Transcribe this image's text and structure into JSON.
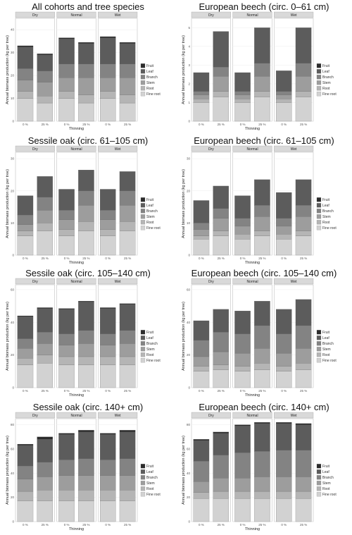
{
  "colors": {
    "Fruit": "#2b2b2b",
    "Leaf": "#5c5c5c",
    "Branch": "#838383",
    "Stem": "#9d9d9d",
    "Root": "#b5b5b5",
    "Fine root": "#d2d2d2",
    "strip": "#d9d9d9",
    "panel_bg": "#ffffff",
    "grid": "#ececec"
  },
  "chart_data": [
    {
      "type": "bar",
      "stacked": true,
      "title": "All cohorts and tree species",
      "xlabel": "Thinning",
      "ylabel": "Annual biomass production (kg per tree)",
      "facets": [
        "Dry",
        "Normal",
        "Wet"
      ],
      "categories": [
        "0 %",
        "25 %"
      ],
      "ylim": [
        0,
        45
      ],
      "yticks": [
        0,
        10,
        20,
        30,
        40
      ],
      "legend": [
        "Fruit",
        "Leaf",
        "Branch",
        "Stem",
        "Root",
        "Fine root"
      ],
      "series": [
        {
          "name": "Fine root",
          "values": [
            [
              10,
              8
            ],
            [
              10,
              8
            ],
            [
              10,
              8
            ]
          ]
        },
        {
          "name": "Root",
          "values": [
            [
              3,
              3
            ],
            [
              3,
              3.5
            ],
            [
              3,
              3.5
            ]
          ]
        },
        {
          "name": "Stem",
          "values": [
            [
              5,
              6
            ],
            [
              6,
              7.5
            ],
            [
              6,
              7.5
            ]
          ]
        },
        {
          "name": "Branch",
          "values": [
            [
              5,
              5
            ],
            [
              6,
              6
            ],
            [
              6,
              6
            ]
          ]
        },
        {
          "name": "Leaf",
          "values": [
            [
              9.5,
              7
            ],
            [
              11,
              9
            ],
            [
              11.5,
              9
            ]
          ]
        },
        {
          "name": "Fruit",
          "values": [
            [
              0.5,
              0.5
            ],
            [
              0.5,
              0.5
            ],
            [
              0.5,
              0.5
            ]
          ]
        }
      ]
    },
    {
      "type": "bar",
      "stacked": true,
      "title": "European beech (circ. 0–61 cm)",
      "xlabel": "Thinning",
      "ylabel": "Annual biomass production (kg per tree)",
      "facets": [
        "Dry",
        "Normal",
        "Wet"
      ],
      "categories": [
        "0 %",
        "25 %"
      ],
      "ylim": [
        0,
        5.5
      ],
      "yticks": [
        0,
        1,
        2,
        3,
        4,
        5
      ],
      "legend": [
        "Fruit",
        "Leaf",
        "Branch",
        "Stem",
        "Root",
        "Fine root"
      ],
      "series": [
        {
          "name": "Fine root",
          "values": [
            [
              1.0,
              1.3
            ],
            [
              1.0,
              1.3
            ],
            [
              1.0,
              1.3
            ]
          ]
        },
        {
          "name": "Root",
          "values": [
            [
              0.2,
              0.3
            ],
            [
              0.2,
              0.3
            ],
            [
              0.2,
              0.3
            ]
          ]
        },
        {
          "name": "Stem",
          "values": [
            [
              0.2,
              0.8
            ],
            [
              0.2,
              0.8
            ],
            [
              0.2,
              0.8
            ]
          ]
        },
        {
          "name": "Branch",
          "values": [
            [
              0.2,
              0.5
            ],
            [
              0.2,
              0.7
            ],
            [
              0.2,
              0.7
            ]
          ]
        },
        {
          "name": "Leaf",
          "values": [
            [
              1.0,
              1.9
            ],
            [
              1.0,
              1.9
            ],
            [
              1.1,
              1.9
            ]
          ]
        },
        {
          "name": "Fruit",
          "values": [
            [
              0,
              0
            ],
            [
              0,
              0
            ],
            [
              0,
              0
            ]
          ]
        }
      ]
    },
    {
      "type": "bar",
      "stacked": true,
      "title": "Sessile oak (circ. 61–105 cm)",
      "xlabel": "Thinning",
      "ylabel": "Annual biomass production (kg per tree)",
      "facets": [
        "Dry",
        "Normal",
        "Wet"
      ],
      "categories": [
        "0 %",
        "25 %"
      ],
      "ylim": [
        0,
        32
      ],
      "yticks": [
        0,
        10,
        20,
        30
      ],
      "legend": [
        "Fruit",
        "Leaf",
        "Branch",
        "Stem",
        "Root",
        "Fine root"
      ],
      "series": [
        {
          "name": "Fine root",
          "values": [
            [
              6,
              7.5
            ],
            [
              6,
              7.5
            ],
            [
              6,
              7.5
            ]
          ]
        },
        {
          "name": "Root",
          "values": [
            [
              1.5,
              2.5
            ],
            [
              2,
              3
            ],
            [
              2,
              3
            ]
          ]
        },
        {
          "name": "Stem",
          "values": [
            [
              2,
              4
            ],
            [
              3,
              5
            ],
            [
              3,
              5
            ]
          ]
        },
        {
          "name": "Branch",
          "values": [
            [
              3,
              4
            ],
            [
              3,
              4.5
            ],
            [
              3,
              4.5
            ]
          ]
        },
        {
          "name": "Leaf",
          "values": [
            [
              6,
              6.5
            ],
            [
              6.5,
              6.5
            ],
            [
              6.5,
              6
            ]
          ]
        },
        {
          "name": "Fruit",
          "values": [
            [
              0,
              0
            ],
            [
              0,
              0
            ],
            [
              0,
              0
            ]
          ]
        }
      ]
    },
    {
      "type": "bar",
      "stacked": true,
      "title": "European beech (circ. 61–105 cm)",
      "xlabel": "Thinning",
      "ylabel": "Annual biomass production (kg per tree)",
      "facets": [
        "Dry",
        "Normal",
        "Wet"
      ],
      "categories": [
        "0 %",
        "25 %"
      ],
      "ylim": [
        0,
        32
      ],
      "yticks": [
        0,
        10,
        20,
        30
      ],
      "legend": [
        "Fruit",
        "Leaf",
        "Branch",
        "Stem",
        "Root",
        "Fine root"
      ],
      "series": [
        {
          "name": "Fine root",
          "values": [
            [
              5,
              6
            ],
            [
              5,
              6
            ],
            [
              5,
              6
            ]
          ]
        },
        {
          "name": "Root",
          "values": [
            [
              1,
              1.5
            ],
            [
              1.5,
              1.5
            ],
            [
              1.5,
              1.5
            ]
          ]
        },
        {
          "name": "Stem",
          "values": [
            [
              2,
              4
            ],
            [
              2.5,
              4.5
            ],
            [
              2.5,
              4.5
            ]
          ]
        },
        {
          "name": "Branch",
          "values": [
            [
              2,
              3
            ],
            [
              2.5,
              3.5
            ],
            [
              2.5,
              3.5
            ]
          ]
        },
        {
          "name": "Leaf",
          "values": [
            [
              7,
              7
            ],
            [
              7,
              8
            ],
            [
              8,
              8
            ]
          ]
        },
        {
          "name": "Fruit",
          "values": [
            [
              0,
              0
            ],
            [
              0,
              0
            ],
            [
              0,
              0
            ]
          ]
        }
      ]
    },
    {
      "type": "bar",
      "stacked": true,
      "title": "Sessile oak (circ. 105–140 cm)",
      "xlabel": "Thinning",
      "ylabel": "Annual biomass production (kg per tree)",
      "facets": [
        "Dry",
        "Normal",
        "Wet"
      ],
      "categories": [
        "0 %",
        "25 %"
      ],
      "ylim": [
        0,
        63
      ],
      "yticks": [
        0,
        20,
        40,
        60
      ],
      "legend": [
        "Fruit",
        "Leaf",
        "Branch",
        "Stem",
        "Root",
        "Fine root"
      ],
      "series": [
        {
          "name": "Fine root",
          "values": [
            [
              14,
              15
            ],
            [
              14,
              14
            ],
            [
              14,
              14
            ]
          ]
        },
        {
          "name": "Root",
          "values": [
            [
              4,
              5
            ],
            [
              5,
              5
            ],
            [
              5,
              5
            ]
          ]
        },
        {
          "name": "Stem",
          "values": [
            [
              6,
              7
            ],
            [
              7,
              8
            ],
            [
              7,
              8
            ]
          ]
        },
        {
          "name": "Branch",
          "values": [
            [
              6,
              7
            ],
            [
              7,
              8
            ],
            [
              7,
              8
            ]
          ]
        },
        {
          "name": "Leaf",
          "values": [
            [
              13.5,
              14.5
            ],
            [
              15,
              17.5
            ],
            [
              15.5,
              16
            ]
          ]
        },
        {
          "name": "Fruit",
          "values": [
            [
              0.5,
              0.5
            ],
            [
              0.5,
              0.5
            ],
            [
              0.5,
              0.5
            ]
          ]
        }
      ]
    },
    {
      "type": "bar",
      "stacked": true,
      "title": "European beech (circ. 105–140 cm)",
      "xlabel": "Thinning",
      "ylabel": "Annual biomass production (kg per tree)",
      "facets": [
        "Dry",
        "Normal",
        "Wet"
      ],
      "categories": [
        "0 %",
        "25 %"
      ],
      "ylim": [
        0,
        63
      ],
      "yticks": [
        0,
        20,
        40,
        60
      ],
      "legend": [
        "Fruit",
        "Leaf",
        "Branch",
        "Stem",
        "Root",
        "Fine root"
      ],
      "series": [
        {
          "name": "Fine root",
          "values": [
            [
              10,
              11
            ],
            [
              10,
              11
            ],
            [
              10,
              11
            ]
          ]
        },
        {
          "name": "Root",
          "values": [
            [
              3,
              3
            ],
            [
              3,
              4
            ],
            [
              3,
              4
            ]
          ]
        },
        {
          "name": "Stem",
          "values": [
            [
              6,
              8
            ],
            [
              8,
              9
            ],
            [
              8,
              9
            ]
          ]
        },
        {
          "name": "Branch",
          "values": [
            [
              10,
              12
            ],
            [
              12,
              14
            ],
            [
              12,
              14
            ]
          ]
        },
        {
          "name": "Leaf",
          "values": [
            [
              12,
              14
            ],
            [
              14,
              15
            ],
            [
              15,
              16
            ]
          ]
        },
        {
          "name": "Fruit",
          "values": [
            [
              0,
              0
            ],
            [
              0,
              0
            ],
            [
              0,
              0
            ]
          ]
        }
      ]
    },
    {
      "type": "bar",
      "stacked": true,
      "title": "Sessile oak (circ. 140+ cm)",
      "xlabel": "Thinning",
      "ylabel": "Annual biomass production (kg per tree)",
      "facets": [
        "Dry",
        "Normal",
        "Wet"
      ],
      "categories": [
        "0 %",
        "25 %"
      ],
      "ylim": [
        0,
        85
      ],
      "yticks": [
        0,
        20,
        40,
        60,
        80
      ],
      "legend": [
        "Fruit",
        "Leaf",
        "Branch",
        "Stem",
        "Root",
        "Fine root"
      ],
      "series": [
        {
          "name": "Fine root",
          "values": [
            [
              17,
              17
            ],
            [
              17,
              17
            ],
            [
              17,
              17
            ]
          ]
        },
        {
          "name": "Root",
          "values": [
            [
              8,
              9
            ],
            [
              9,
              9
            ],
            [
              9,
              9
            ]
          ]
        },
        {
          "name": "Stem",
          "values": [
            [
              10,
              11
            ],
            [
              12,
              12
            ],
            [
              12,
              12
            ]
          ]
        },
        {
          "name": "Branch",
          "values": [
            [
              11,
              12
            ],
            [
              13,
              14
            ],
            [
              13,
              14
            ]
          ]
        },
        {
          "name": "Leaf",
          "values": [
            [
              17,
              19
            ],
            [
              21,
              22
            ],
            [
              21,
              22
            ]
          ]
        },
        {
          "name": "Fruit",
          "values": [
            [
              1,
              2
            ],
            [
              1,
              1.5
            ],
            [
              1,
              1.5
            ]
          ]
        }
      ]
    },
    {
      "type": "bar",
      "stacked": true,
      "title": "European beech (circ. 140+ cm)",
      "xlabel": "Thinning",
      "ylabel": "Annual biomass production (kg per tree)",
      "facets": [
        "Dry",
        "Normal",
        "Wet"
      ],
      "categories": [
        "0 %",
        "25 %"
      ],
      "ylim": [
        0,
        85
      ],
      "yticks": [
        0,
        20,
        40,
        60,
        80
      ],
      "legend": [
        "Fruit",
        "Leaf",
        "Branch",
        "Stem",
        "Root",
        "Fine root"
      ],
      "series": [
        {
          "name": "Fine root",
          "values": [
            [
              19,
              19
            ],
            [
              19,
              19
            ],
            [
              19,
              19
            ]
          ]
        },
        {
          "name": "Root",
          "values": [
            [
              5,
              6
            ],
            [
              6,
              6
            ],
            [
              6,
              6
            ]
          ]
        },
        {
          "name": "Stem",
          "values": [
            [
              9,
              11
            ],
            [
              11,
              12
            ],
            [
              12,
              12
            ]
          ]
        },
        {
          "name": "Branch",
          "values": [
            [
              17,
              19
            ],
            [
              21,
              21
            ],
            [
              22,
              22
            ]
          ]
        },
        {
          "name": "Leaf",
          "values": [
            [
              17,
              18
            ],
            [
              22,
              23
            ],
            [
              22,
              21
            ]
          ]
        },
        {
          "name": "Fruit",
          "values": [
            [
              1,
              1
            ],
            [
              1,
              1
            ],
            [
              1,
              1
            ]
          ]
        }
      ]
    }
  ]
}
